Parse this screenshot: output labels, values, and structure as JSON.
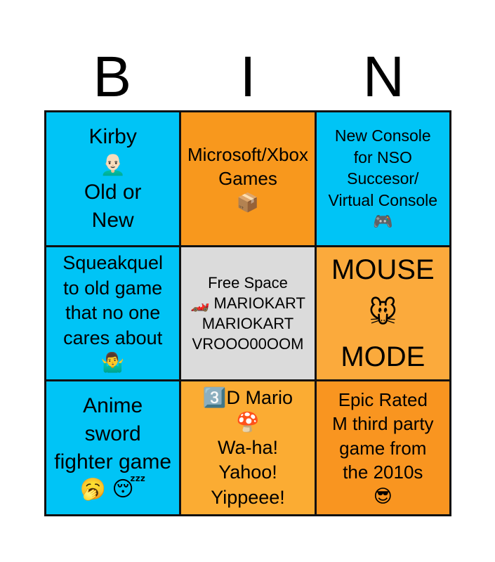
{
  "card": {
    "title_letters": [
      "B",
      "I",
      "N"
    ],
    "letter_color": "#000000",
    "text_color": "#000000",
    "grid_line_color": "#111111",
    "page_background": "#ffffff",
    "palette": {
      "cyan": "#00C4F6",
      "orange_saturated": "#F8981D",
      "orange_light": "#FBAA3C",
      "gray_free_space": "#DBDBDB"
    },
    "emoji_glossary": {
      "bald-man-emoji": "👨🏻‍🦲",
      "package-emoji": "📦",
      "gamepad-emoji": "🎮",
      "man-shrugging-emoji": "🤷‍♂️",
      "racing-car-emoji": "🏎️",
      "mouse-face-emoji": "🐭",
      "yawning-face-emoji": "🥱",
      "sleeping-face-emoji": "😴",
      "keycap-3-emoji": "3️⃣",
      "mushroom-emoji": "🍄",
      "sunglasses-face-emoji": "😎"
    },
    "cells": [
      {
        "bg": "#00C4F6",
        "lines": [
          "Kirby",
          "👨🏻‍🦲",
          "Old or",
          "New"
        ]
      },
      {
        "bg": "#F8981D",
        "lines": [
          "Microsoft/Xbox",
          "Games",
          "📦"
        ]
      },
      {
        "bg": "#00C4F6",
        "lines": [
          "New Console",
          "for NSO",
          "Succesor/",
          "Virtual Console",
          "🎮"
        ]
      },
      {
        "bg": "#00C4F6",
        "lines": [
          "Squeakquel",
          "to old game",
          "that no one",
          "cares about",
          "🤷‍♂️"
        ]
      },
      {
        "bg": "#DBDBDB",
        "lines": [
          "Free Space",
          "🏎️ MARIOKART",
          "MARIOKART",
          "VROOO00OOM"
        ]
      },
      {
        "bg": "#FBAA3C",
        "lines": [
          "MOUSE",
          "🐭",
          "MODE"
        ]
      },
      {
        "bg": "#00C4F6",
        "lines": [
          "Anime",
          "sword",
          "fighter game",
          "🥱 😴"
        ]
      },
      {
        "bg": "#FBAC33",
        "lines": [
          "3️⃣D Mario",
          "🍄",
          "Wa-ha!",
          "Yahoo!",
          "Yippeee!"
        ]
      },
      {
        "bg": "#F99520",
        "lines": [
          "Epic Rated",
          "M third party",
          "game from",
          "the 2010s",
          "😎"
        ]
      }
    ]
  }
}
